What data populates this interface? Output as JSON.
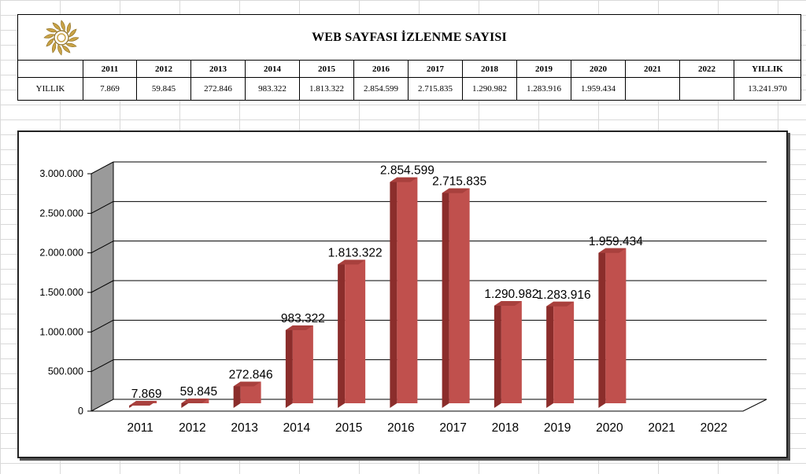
{
  "table": {
    "title": "WEB SAYFASI İZLENME SAYISI",
    "headers": [
      "2011",
      "2012",
      "2013",
      "2014",
      "2015",
      "2016",
      "2017",
      "2018",
      "2019",
      "2020",
      "2021",
      "2022",
      "YILLIK"
    ],
    "row_label": "YILLIK",
    "values": [
      "7.869",
      "59.845",
      "272.846",
      "983.322",
      "1.813.322",
      "2.854.599",
      "2.715.835",
      "1.290.982",
      "1.283.916",
      "1.959.434",
      "",
      "",
      "13.241.970"
    ]
  },
  "chart_data": {
    "type": "bar",
    "title": "",
    "xlabel": "",
    "ylabel": "",
    "categories": [
      "2011",
      "2012",
      "2013",
      "2014",
      "2015",
      "2016",
      "2017",
      "2018",
      "2019",
      "2020",
      "2021",
      "2022"
    ],
    "series": [
      {
        "values": [
          7869,
          59845,
          272846,
          983322,
          1813322,
          2854599,
          2715835,
          1290982,
          1283916,
          1959434,
          null,
          null
        ]
      }
    ],
    "value_labels": [
      "7.869",
      "59.845",
      "272.846",
      "983.322",
      "1.813.322",
      "2.854.599",
      "2.715.835",
      "1.290.982",
      "1.283.916",
      "1.959.434",
      "",
      ""
    ],
    "y_ticks": [
      0,
      500000,
      1000000,
      1500000,
      2000000,
      2500000,
      3000000
    ],
    "y_tick_labels": [
      "0",
      "500.000",
      "1.000.000",
      "1.500.000",
      "2.000.000",
      "2.500.000",
      "3.000.000"
    ],
    "ylim": [
      0,
      3000000
    ],
    "grid": true,
    "legend": "none",
    "style": "3d-bar",
    "bar_color": "#c0504d",
    "bar_side_color": "#8b2d2b",
    "bar_top_color": "#a8403d",
    "wall_color": "#9a9a9a"
  }
}
